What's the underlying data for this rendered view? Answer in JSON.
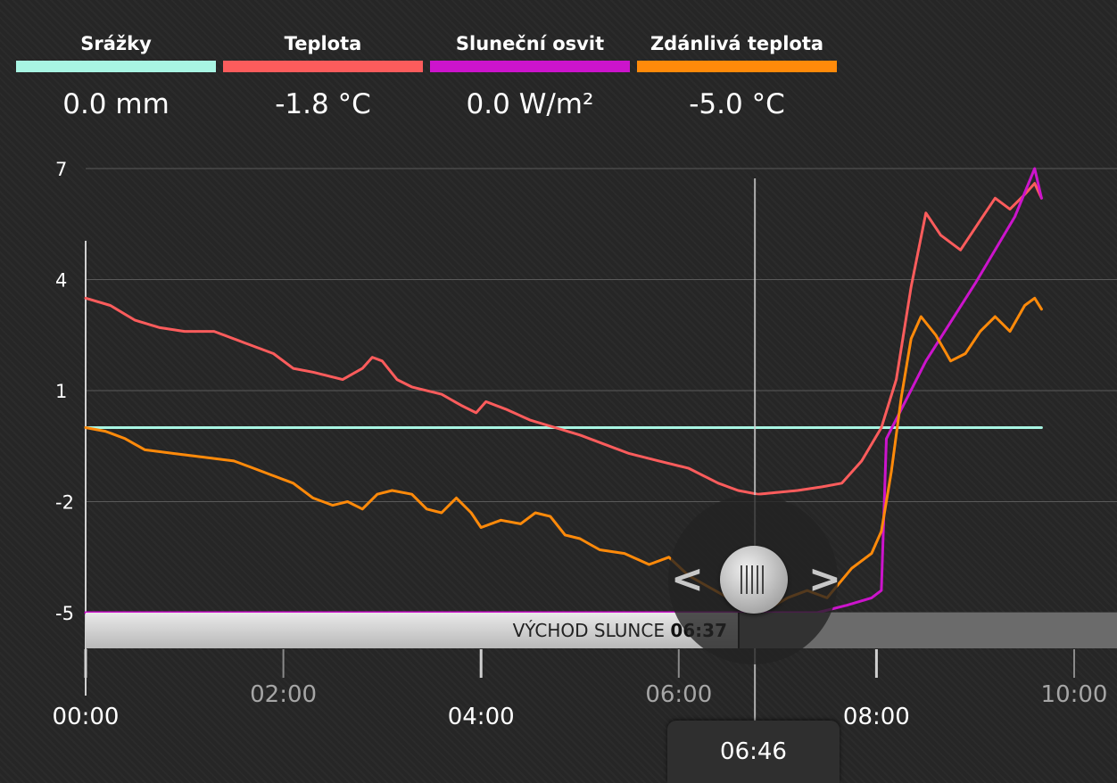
{
  "legend": [
    {
      "label": "Srážky",
      "value": "0.0 mm",
      "color": "#a8f5e3"
    },
    {
      "label": "Teplota",
      "value": "-1.8 °C",
      "color": "#fc5c5c"
    },
    {
      "label": "Sluneční osvit",
      "value": "0.0 W/m²",
      "color": "#cc14cc"
    },
    {
      "label": "Zdánlivá teplota",
      "value": "-5.0 °C",
      "color": "#ff8a0a"
    }
  ],
  "sunrise": {
    "label": "VÝCHOD SLUNCE",
    "time": "06:37"
  },
  "cursor": {
    "time_label": "06:46",
    "hour": 6.77
  },
  "chart_data": {
    "type": "line",
    "xlabel": "",
    "ylabel": "",
    "xlim": [
      0,
      10
    ],
    "ylim": [
      -5,
      7
    ],
    "y_ticks": [
      {
        "value": -5,
        "label": "-5"
      },
      {
        "value": -2,
        "label": "-2"
      },
      {
        "value": 1,
        "label": "1"
      },
      {
        "value": 4,
        "label": "4"
      },
      {
        "value": 7,
        "label": "7"
      }
    ],
    "x_ticks": [
      {
        "value": 0,
        "label": "00:00",
        "major": true
      },
      {
        "value": 2,
        "label": "02:00",
        "major": false
      },
      {
        "value": 4,
        "label": "04:00",
        "major": true
      },
      {
        "value": 6,
        "label": "06:00",
        "major": false
      },
      {
        "value": 8,
        "label": "08:00",
        "major": true
      },
      {
        "value": 10,
        "label": "10:00",
        "major": false
      }
    ],
    "grid": true,
    "series": [
      {
        "name": "Srážky",
        "color": "#a8f5e3",
        "points": [
          [
            0,
            0
          ],
          [
            9.67,
            0
          ]
        ]
      },
      {
        "name": "Teplota",
        "color": "#fc5c5c",
        "points": [
          [
            0,
            3.5
          ],
          [
            0.25,
            3.3
          ],
          [
            0.5,
            2.9
          ],
          [
            0.75,
            2.7
          ],
          [
            1.0,
            2.6
          ],
          [
            1.3,
            2.6
          ],
          [
            1.6,
            2.3
          ],
          [
            1.9,
            2.0
          ],
          [
            2.1,
            1.6
          ],
          [
            2.3,
            1.5
          ],
          [
            2.6,
            1.3
          ],
          [
            2.8,
            1.6
          ],
          [
            2.9,
            1.9
          ],
          [
            3.0,
            1.8
          ],
          [
            3.15,
            1.3
          ],
          [
            3.3,
            1.1
          ],
          [
            3.6,
            0.9
          ],
          [
            3.8,
            0.6
          ],
          [
            3.95,
            0.4
          ],
          [
            4.05,
            0.7
          ],
          [
            4.25,
            0.5
          ],
          [
            4.5,
            0.2
          ],
          [
            4.75,
            0.0
          ],
          [
            5.0,
            -0.2
          ],
          [
            5.3,
            -0.5
          ],
          [
            5.5,
            -0.7
          ],
          [
            5.8,
            -0.9
          ],
          [
            6.1,
            -1.1
          ],
          [
            6.4,
            -1.5
          ],
          [
            6.6,
            -1.7
          ],
          [
            6.8,
            -1.8
          ],
          [
            7.0,
            -1.75
          ],
          [
            7.2,
            -1.7
          ],
          [
            7.45,
            -1.6
          ],
          [
            7.65,
            -1.5
          ],
          [
            7.85,
            -0.9
          ],
          [
            8.05,
            0.0
          ],
          [
            8.2,
            1.3
          ],
          [
            8.35,
            3.8
          ],
          [
            8.5,
            5.8
          ],
          [
            8.65,
            5.2
          ],
          [
            8.85,
            4.8
          ],
          [
            9.05,
            5.6
          ],
          [
            9.2,
            6.2
          ],
          [
            9.35,
            5.9
          ],
          [
            9.5,
            6.3
          ],
          [
            9.6,
            6.6
          ],
          [
            9.67,
            6.2
          ]
        ]
      },
      {
        "name": "Sluneční osvit",
        "color": "#cc14cc",
        "points": [
          [
            0,
            -5
          ],
          [
            6.6,
            -5
          ],
          [
            7.4,
            -5
          ],
          [
            7.7,
            -4.8
          ],
          [
            7.95,
            -4.6
          ],
          [
            8.05,
            -4.4
          ],
          [
            8.1,
            -0.3
          ],
          [
            8.5,
            1.8
          ],
          [
            9.0,
            3.9
          ],
          [
            9.4,
            5.7
          ],
          [
            9.6,
            7.0
          ],
          [
            9.67,
            6.2
          ]
        ]
      },
      {
        "name": "Zdánlivá teplota",
        "color": "#ff8a0a",
        "points": [
          [
            0,
            0.0
          ],
          [
            0.2,
            -0.1
          ],
          [
            0.4,
            -0.3
          ],
          [
            0.6,
            -0.6
          ],
          [
            0.9,
            -0.7
          ],
          [
            1.2,
            -0.8
          ],
          [
            1.5,
            -0.9
          ],
          [
            1.7,
            -1.1
          ],
          [
            1.9,
            -1.3
          ],
          [
            2.1,
            -1.5
          ],
          [
            2.3,
            -1.9
          ],
          [
            2.5,
            -2.1
          ],
          [
            2.65,
            -2.0
          ],
          [
            2.8,
            -2.2
          ],
          [
            2.95,
            -1.8
          ],
          [
            3.1,
            -1.7
          ],
          [
            3.3,
            -1.8
          ],
          [
            3.45,
            -2.2
          ],
          [
            3.6,
            -2.3
          ],
          [
            3.75,
            -1.9
          ],
          [
            3.9,
            -2.3
          ],
          [
            4.0,
            -2.7
          ],
          [
            4.2,
            -2.5
          ],
          [
            4.4,
            -2.6
          ],
          [
            4.55,
            -2.3
          ],
          [
            4.7,
            -2.4
          ],
          [
            4.85,
            -2.9
          ],
          [
            5.0,
            -3.0
          ],
          [
            5.2,
            -3.3
          ],
          [
            5.45,
            -3.4
          ],
          [
            5.7,
            -3.7
          ],
          [
            5.9,
            -3.5
          ],
          [
            6.1,
            -4.0
          ],
          [
            6.3,
            -4.3
          ],
          [
            6.5,
            -4.6
          ],
          [
            6.7,
            -4.8
          ],
          [
            6.9,
            -4.9
          ],
          [
            7.1,
            -4.6
          ],
          [
            7.3,
            -4.4
          ],
          [
            7.5,
            -4.6
          ],
          [
            7.75,
            -3.8
          ],
          [
            7.95,
            -3.4
          ],
          [
            8.05,
            -2.8
          ],
          [
            8.15,
            -1.2
          ],
          [
            8.25,
            0.8
          ],
          [
            8.35,
            2.4
          ],
          [
            8.45,
            3.0
          ],
          [
            8.6,
            2.5
          ],
          [
            8.75,
            1.8
          ],
          [
            8.9,
            2.0
          ],
          [
            9.05,
            2.6
          ],
          [
            9.2,
            3.0
          ],
          [
            9.35,
            2.6
          ],
          [
            9.5,
            3.3
          ],
          [
            9.6,
            3.5
          ],
          [
            9.67,
            3.2
          ]
        ]
      }
    ]
  }
}
